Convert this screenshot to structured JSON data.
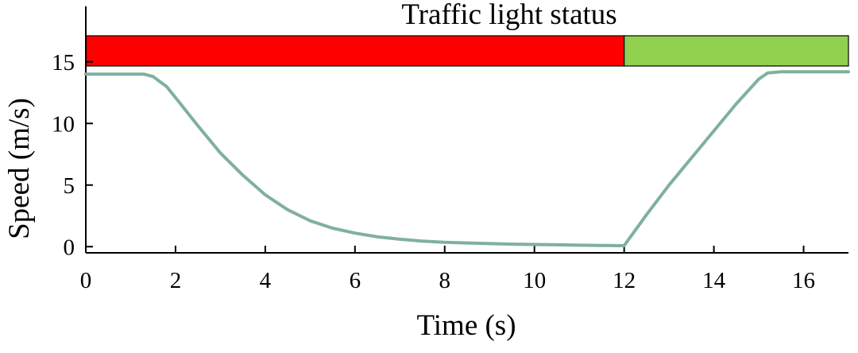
{
  "chart_data": {
    "type": "line",
    "title": "Traffic light status",
    "xlabel": "Time (s)",
    "ylabel": "Speed (m/s)",
    "xlim": [
      0,
      17
    ],
    "ylim": [
      -0.5,
      19.5
    ],
    "xticks": [
      0,
      2,
      4,
      6,
      8,
      10,
      12,
      14,
      16
    ],
    "yticks": [
      0,
      5,
      10,
      15
    ],
    "grid": false,
    "line_color": "#7fb0a0",
    "traffic_light": [
      {
        "state": "red",
        "start": 0,
        "end": 12,
        "color": "#ff0000"
      },
      {
        "state": "green",
        "start": 12,
        "end": 17,
        "color": "#92d050"
      }
    ],
    "series": [
      {
        "x": [
          0,
          0.5,
          1.0,
          1.3,
          1.5,
          1.8,
          2.0,
          2.5,
          3.0,
          3.5,
          4.0,
          4.5,
          5.0,
          5.5,
          6.0,
          6.5,
          7.0,
          7.5,
          8.0,
          8.5,
          9.0,
          9.5,
          10.0,
          10.5,
          11.0,
          11.5,
          11.9,
          12.0,
          12.5,
          13.0,
          13.5,
          14.0,
          14.5,
          15.0,
          15.2,
          15.5,
          16.0,
          16.5,
          17.0
        ],
        "y": [
          14.0,
          14.0,
          14.0,
          14.0,
          13.8,
          13.0,
          12.1,
          9.8,
          7.6,
          5.8,
          4.2,
          3.0,
          2.1,
          1.5,
          1.1,
          0.8,
          0.6,
          0.45,
          0.35,
          0.3,
          0.25,
          0.2,
          0.18,
          0.15,
          0.12,
          0.1,
          0.08,
          0.08,
          2.6,
          5.0,
          7.2,
          9.4,
          11.6,
          13.6,
          14.1,
          14.2,
          14.2,
          14.2,
          14.2
        ]
      }
    ]
  }
}
